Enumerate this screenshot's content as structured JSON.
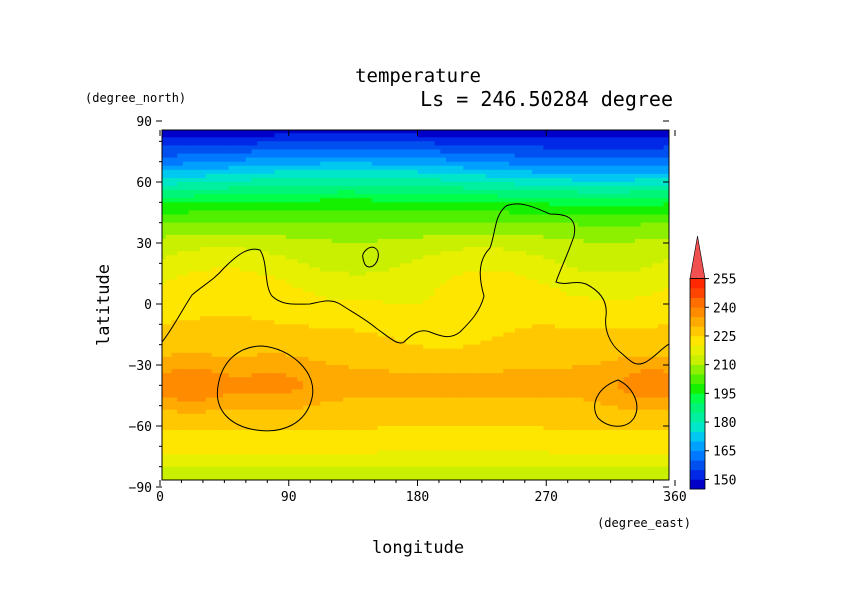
{
  "chart_data": {
    "type": "heatmap",
    "title": "temperature",
    "subtitle": "Ls = 246.50284 degree",
    "xlabel": "longitude",
    "ylabel": "latitude",
    "x_units": "(degree_east)",
    "y_units": "(degree_north)",
    "xlim": [
      0,
      360
    ],
    "ylim": [
      -90,
      90
    ],
    "x_ticks": [
      "0",
      "90",
      "180",
      "270",
      "360"
    ],
    "y_ticks": [
      "90",
      "60",
      "30",
      "0",
      "−30",
      "−60",
      "−90"
    ],
    "colorbar": {
      "labels": [
        "150",
        "165",
        "180",
        "195",
        "210",
        "225",
        "240",
        "255"
      ],
      "levels": [
        145,
        150,
        155,
        160,
        165,
        170,
        175,
        180,
        185,
        190,
        195,
        200,
        205,
        210,
        215,
        220,
        225,
        230,
        235,
        240,
        245,
        250,
        255,
        260
      ],
      "colors": [
        "#0000c8",
        "#0028e6",
        "#0050f0",
        "#0078ff",
        "#00a0ff",
        "#00c8f0",
        "#00e6c8",
        "#00f0a0",
        "#00f578",
        "#00ff46",
        "#14f000",
        "#50f000",
        "#8cf000",
        "#c8f000",
        "#e6f000",
        "#ffe600",
        "#ffc800",
        "#ffaa00",
        "#ff8c00",
        "#ff6e00",
        "#ff4600",
        "#ff2800",
        "#f05050"
      ],
      "extend": "max"
    },
    "approx_temperature_by_latitude_K": [
      {
        "lat": 85,
        "value": 147
      },
      {
        "lat": 70,
        "value": 165
      },
      {
        "lat": 60,
        "value": 180
      },
      {
        "lat": 50,
        "value": 195
      },
      {
        "lat": 40,
        "value": 205
      },
      {
        "lat": 30,
        "value": 212
      },
      {
        "lat": 10,
        "value": 220
      },
      {
        "lat": -10,
        "value": 225
      },
      {
        "lat": -40,
        "value": 232
      },
      {
        "lat": -70,
        "value": 222
      },
      {
        "lat": -85,
        "value": 212
      }
    ]
  }
}
